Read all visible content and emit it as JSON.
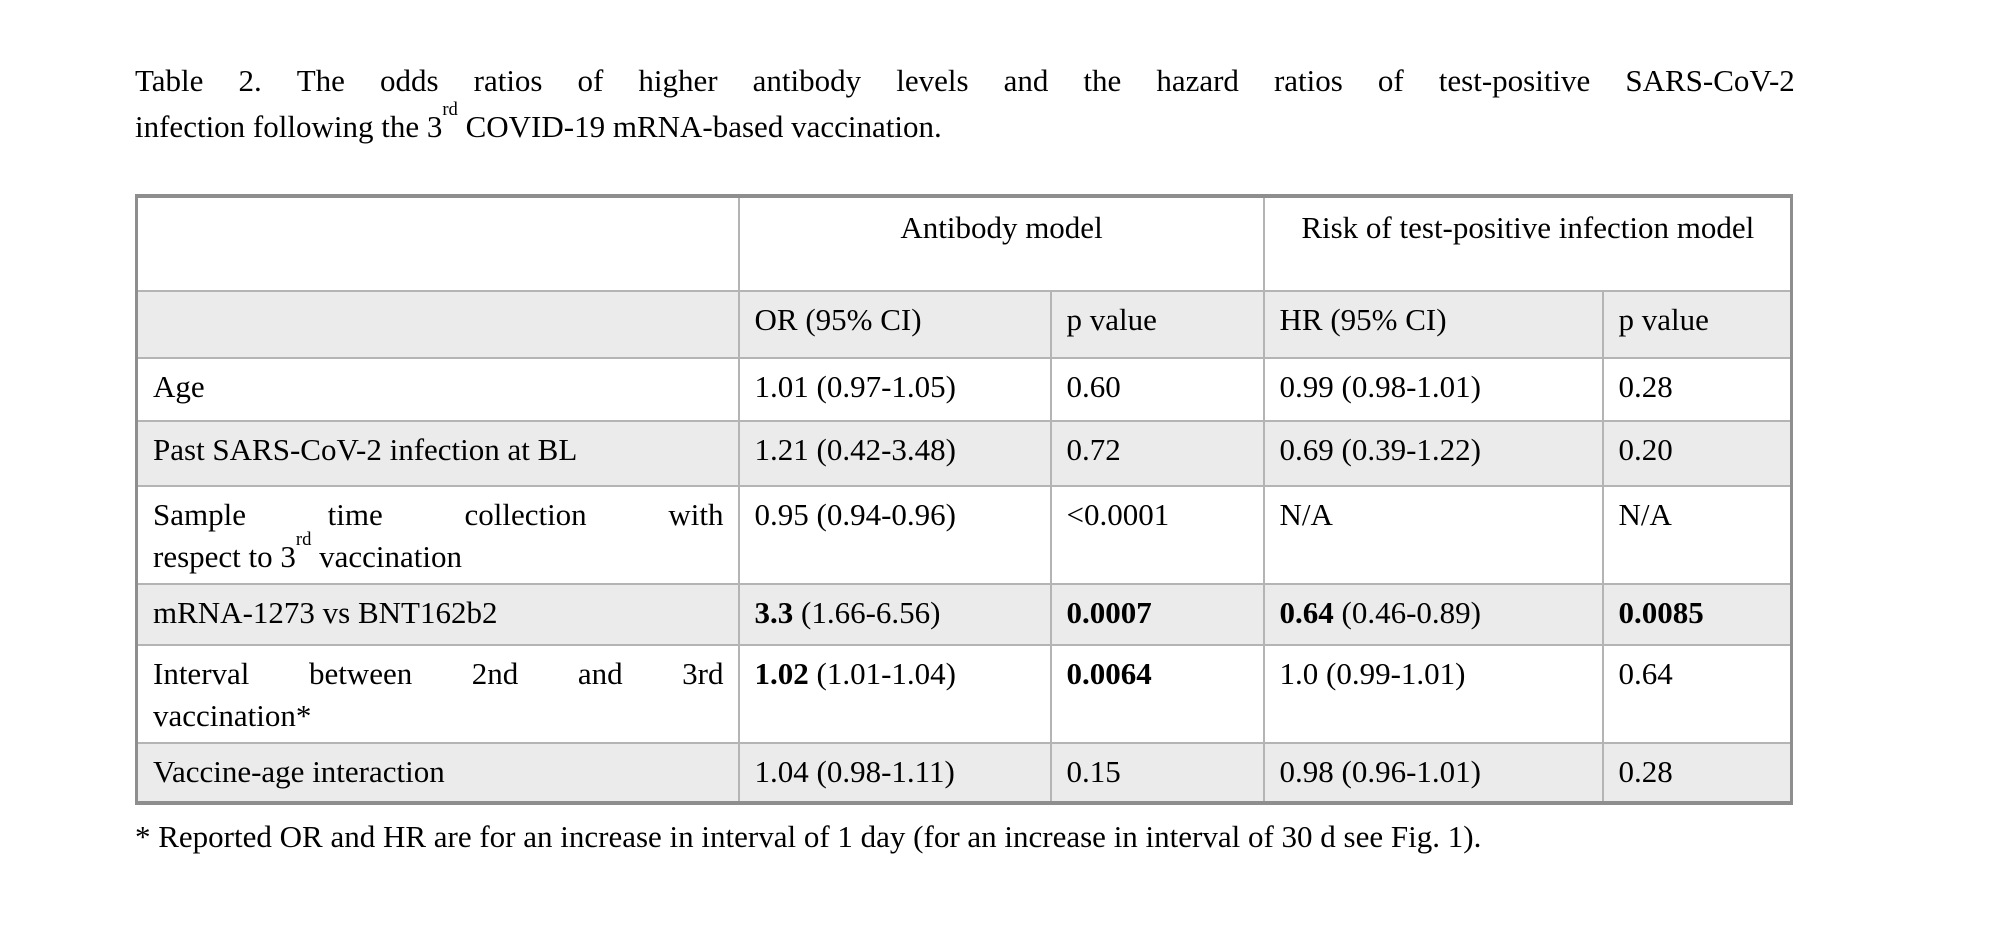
{
  "colors": {
    "row_shade": "#ebebeb",
    "inner_border": "#b4b4b4",
    "outer_border": "#8e8e8e"
  },
  "caption": {
    "lines": [
      {
        "stretch": true,
        "segments": [
          {
            "t": "Table 2. The odds ratios of higher antibody levels and the hazard ratios of test-positive SARS-CoV-2"
          }
        ]
      },
      {
        "segments": [
          {
            "t": "infection following the 3"
          },
          {
            "t": "rd",
            "sup": true
          },
          {
            "t": " COVID-19 mRNA-based vaccination."
          }
        ]
      }
    ]
  },
  "table": {
    "group_headers": [
      {
        "label": ""
      },
      {
        "label": "Antibody model"
      },
      {
        "label": "Risk of test-positive infection model"
      }
    ],
    "sub_headers": [
      "",
      "OR (95% CI)",
      "p value",
      "HR (95% CI)",
      "p value"
    ],
    "rows": [
      {
        "shaded": false,
        "label_lines": [
          {
            "segments": [
              {
                "t": "Age"
              }
            ]
          }
        ],
        "cells": [
          {
            "t": "1.01 (0.97-1.05)"
          },
          {
            "t": "0.60"
          },
          {
            "t": "0.99 (0.98-1.01)"
          },
          {
            "t": "0.28"
          }
        ]
      },
      {
        "shaded": true,
        "label_lines": [
          {
            "segments": [
              {
                "t": "Past SARS-CoV-2 infection at BL"
              }
            ]
          }
        ],
        "cells": [
          {
            "t": "1.21 (0.42-3.48)"
          },
          {
            "t": "0.72"
          },
          {
            "t": "0.69 (0.39-1.22)"
          },
          {
            "t": "0.20"
          }
        ]
      },
      {
        "shaded": false,
        "label_lines": [
          {
            "stretch": true,
            "segments": [
              {
                "t": "Sample time collection with"
              }
            ]
          },
          {
            "segments": [
              {
                "t": "respect to 3"
              },
              {
                "t": "rd",
                "sup": true
              },
              {
                "t": " vaccination"
              }
            ]
          }
        ],
        "cells": [
          {
            "t": "0.95 (0.94-0.96)"
          },
          {
            "t": "<0.0001"
          },
          {
            "t": "N/A"
          },
          {
            "t": "N/A"
          }
        ]
      },
      {
        "shaded": true,
        "label_lines": [
          {
            "segments": [
              {
                "t": "mRNA-1273 vs BNT162b2"
              }
            ]
          }
        ],
        "cells": [
          {
            "b": "3.3",
            "t": "(1.66-6.56)"
          },
          {
            "b": "0.0007"
          },
          {
            "b": "0.64",
            "t": "(0.46-0.89)"
          },
          {
            "b": "0.0085"
          }
        ]
      },
      {
        "shaded": false,
        "label_lines": [
          {
            "stretch": true,
            "segments": [
              {
                "t": "Interval between 2nd and 3rd"
              }
            ]
          },
          {
            "segments": [
              {
                "t": "vaccination*"
              }
            ]
          }
        ],
        "cells": [
          {
            "b": "1.02",
            "t": "(1.01-1.04)"
          },
          {
            "b": "0.0064"
          },
          {
            "t": "1.0 (0.99-1.01)"
          },
          {
            "t": "0.64"
          }
        ]
      },
      {
        "shaded": true,
        "label_lines": [
          {
            "segments": [
              {
                "t": "Vaccine-age interaction"
              }
            ]
          }
        ],
        "cells": [
          {
            "t": "1.04 (0.98-1.11)"
          },
          {
            "t": "0.15"
          },
          {
            "t": "0.98 (0.96-1.01)"
          },
          {
            "t": "0.28"
          }
        ]
      }
    ]
  },
  "footnote": "* Reported OR and HR are for an increase in interval of 1 day (for an increase in interval of 30 d see Fig. 1)."
}
